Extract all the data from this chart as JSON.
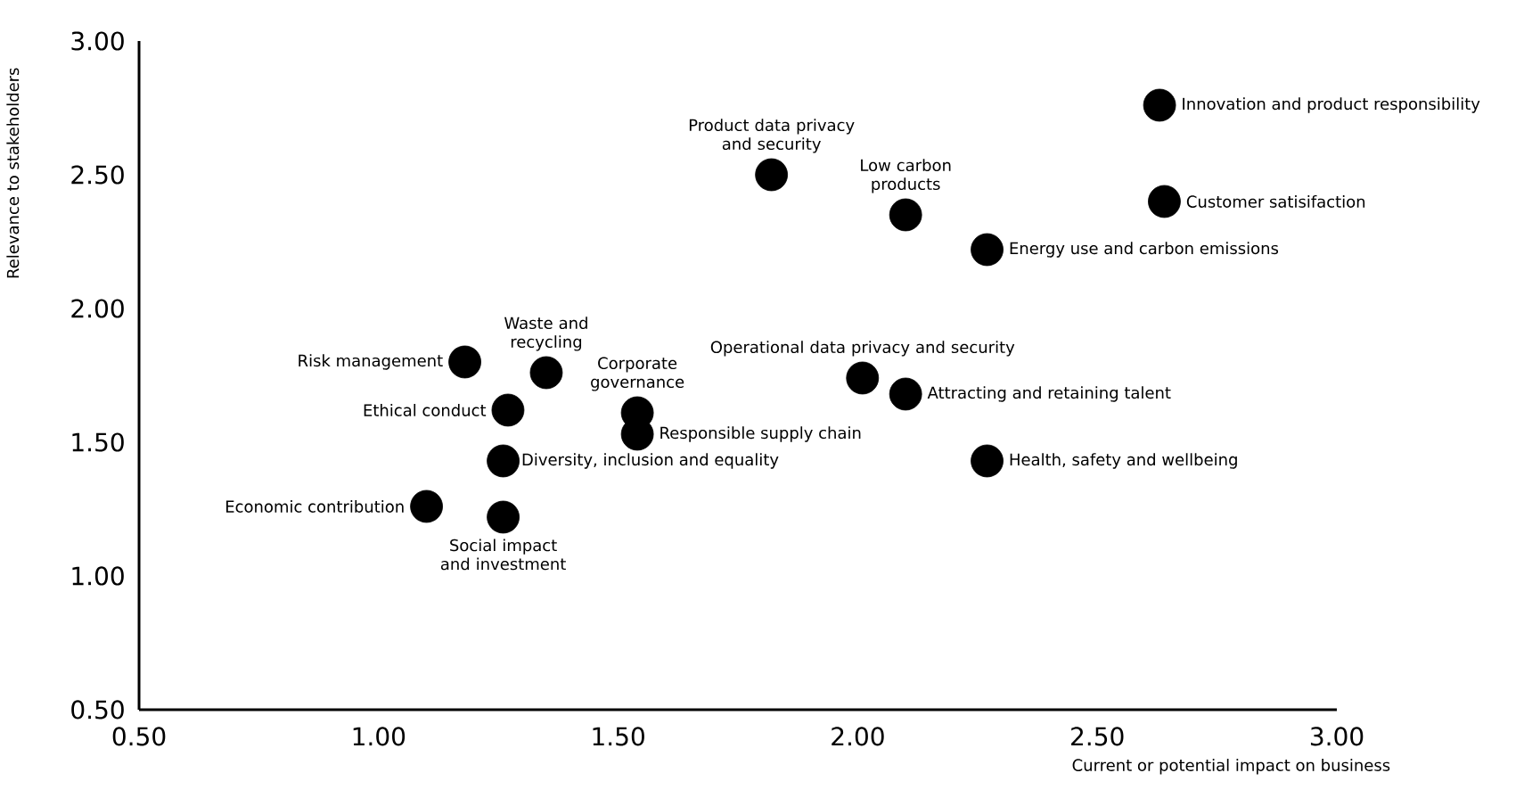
{
  "chart_data": {
    "type": "scatter",
    "xlabel": "Current or potential impact on business",
    "ylabel": "Relevance to stakeholders",
    "xlim": [
      0.5,
      3.0
    ],
    "ylim": [
      0.5,
      3.0
    ],
    "xticks": [
      {
        "value": 0.5,
        "label": "0.50"
      },
      {
        "value": 1.0,
        "label": "1.00"
      },
      {
        "value": 1.5,
        "label": "1.50"
      },
      {
        "value": 2.0,
        "label": "2.00"
      },
      {
        "value": 2.5,
        "label": "2.50"
      },
      {
        "value": 3.0,
        "label": "3.00"
      }
    ],
    "yticks": [
      {
        "value": 0.5,
        "label": "0.50"
      },
      {
        "value": 1.0,
        "label": "1.00"
      },
      {
        "value": 1.5,
        "label": "1.50"
      },
      {
        "value": 2.0,
        "label": "2.00"
      },
      {
        "value": 2.5,
        "label": "2.50"
      },
      {
        "value": 3.0,
        "label": "3.00"
      }
    ],
    "marker": "circle",
    "series": [
      {
        "color": "#000000",
        "x": [
          2.63,
          2.64,
          2.27,
          1.82,
          2.1,
          2.01,
          2.1,
          2.27,
          1.18,
          1.35,
          1.54,
          1.54,
          1.27,
          1.26,
          1.1,
          1.26
        ],
        "values": [
          2.76,
          2.4,
          2.22,
          2.5,
          2.35,
          1.74,
          1.68,
          1.43,
          1.8,
          1.76,
          1.61,
          1.53,
          1.62,
          1.43,
          1.26,
          1.22
        ]
      }
    ],
    "annotations": [
      {
        "text": "Innovation and product responsibility",
        "x": 2.63,
        "y": 2.76
      },
      {
        "text": "Customer  satisifaction",
        "x": 2.64,
        "y": 2.4
      },
      {
        "text": "Energy use and carbon emissions",
        "x": 2.27,
        "y": 2.22
      },
      {
        "text": "Product data privacy and security",
        "x": 1.82,
        "y": 2.5
      },
      {
        "text": "Low carbon products",
        "x": 2.1,
        "y": 2.35
      },
      {
        "text": "Operational data privacy and security",
        "x": 2.01,
        "y": 1.74
      },
      {
        "text": "Attracting and retaining talent",
        "x": 2.1,
        "y": 1.68
      },
      {
        "text": "Health, safety and wellbeing",
        "x": 2.27,
        "y": 1.43
      },
      {
        "text": "Risk management",
        "x": 1.18,
        "y": 1.8
      },
      {
        "text": "Waste and recycling",
        "x": 1.35,
        "y": 1.76
      },
      {
        "text": "Corporate governance",
        "x": 1.54,
        "y": 1.61
      },
      {
        "text": "Responsible supply chain",
        "x": 1.54,
        "y": 1.53
      },
      {
        "text": "Ethical conduct",
        "x": 1.27,
        "y": 1.62
      },
      {
        "text": "Diversity, inclusion and equality",
        "x": 1.26,
        "y": 1.43
      },
      {
        "text": "Economic contribution",
        "x": 1.1,
        "y": 1.26
      },
      {
        "text": "Social impact and investment",
        "x": 1.26,
        "y": 1.22
      }
    ]
  }
}
